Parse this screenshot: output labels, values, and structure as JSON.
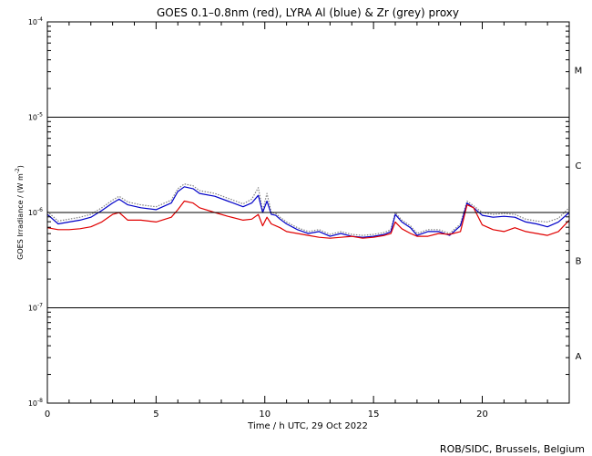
{
  "chart_data": {
    "type": "line",
    "title": "GOES 0.1–0.8nm (red), LYRA Al (blue) & Zr (grey) proxy",
    "xlabel": "Time / h UTC, 29 Oct 2022",
    "ylabel": "GOES Irradiance / (W m",
    "ylabel_sup": "-2",
    "ylabel_close": ")",
    "credit": "ROB/SIDC, Brussels, Belgium",
    "x_range": [
      0,
      24
    ],
    "y_log_range": [
      -8,
      -4
    ],
    "y_scale": "log",
    "x_ticks": [
      {
        "value": 0,
        "label": "0"
      },
      {
        "value": 5,
        "label": "5"
      },
      {
        "value": 10,
        "label": "10"
      },
      {
        "value": 15,
        "label": "15"
      },
      {
        "value": 20,
        "label": "20"
      }
    ],
    "y_ticks": [
      {
        "exp": -8,
        "base": "10",
        "sup": "-8"
      },
      {
        "exp": -7,
        "base": "10",
        "sup": "-7"
      },
      {
        "exp": -6,
        "base": "10",
        "sup": "-6"
      },
      {
        "exp": -5,
        "base": "10",
        "sup": "-5"
      },
      {
        "exp": -4,
        "base": "10",
        "sup": "-4"
      }
    ],
    "flare_class_lines": [
      -7,
      -6,
      -5
    ],
    "flare_classes": [
      {
        "label": "A",
        "exp": -7.5
      },
      {
        "label": "B",
        "exp": -6.5
      },
      {
        "label": "C",
        "exp": -5.5
      },
      {
        "label": "M",
        "exp": -4.5
      }
    ],
    "colors": {
      "goes": "#e00000",
      "lyra_al": "#0000c8",
      "lyra_zr": "#808080",
      "axes": "#000000"
    },
    "series": [
      {
        "color": "#e00000",
        "x": [
          0,
          0.5,
          1,
          1.5,
          2,
          2.5,
          3,
          3.3,
          3.7,
          4.3,
          5,
          5.7,
          6,
          6.3,
          6.7,
          7,
          7.7,
          8.3,
          9,
          9.4,
          9.7,
          9.9,
          10.1,
          10.3,
          10.5,
          10.7,
          11,
          11.5,
          12,
          12.5,
          13,
          13.5,
          14,
          14.5,
          15,
          15.5,
          15.8,
          16,
          16.3,
          16.7,
          17,
          17.5,
          18,
          18.5,
          19,
          19.3,
          19.6,
          20,
          20.5,
          21,
          21.5,
          22,
          22.5,
          23,
          23.5,
          24
        ],
        "log_y": [
          -6.16,
          -6.18,
          -6.18,
          -6.17,
          -6.15,
          -6.1,
          -6.02,
          -6.0,
          -6.08,
          -6.08,
          -6.1,
          -6.05,
          -5.97,
          -5.88,
          -5.9,
          -5.95,
          -6.0,
          -6.04,
          -6.08,
          -6.07,
          -6.02,
          -6.14,
          -6.05,
          -6.12,
          -6.14,
          -6.16,
          -6.2,
          -6.22,
          -6.24,
          -6.26,
          -6.27,
          -6.26,
          -6.25,
          -6.27,
          -6.26,
          -6.24,
          -6.22,
          -6.1,
          -6.17,
          -6.22,
          -6.25,
          -6.25,
          -6.22,
          -6.23,
          -6.2,
          -5.92,
          -5.95,
          -6.13,
          -6.18,
          -6.2,
          -6.16,
          -6.2,
          -6.22,
          -6.24,
          -6.2,
          -6.08
        ]
      },
      {
        "color": "#0000c8",
        "x": [
          0,
          0.5,
          1,
          1.5,
          2,
          2.5,
          3,
          3.3,
          3.7,
          4.3,
          5,
          5.7,
          6,
          6.3,
          6.7,
          7,
          7.7,
          8.3,
          9,
          9.4,
          9.7,
          9.9,
          10.1,
          10.3,
          10.5,
          10.7,
          11,
          11.5,
          12,
          12.5,
          13,
          13.5,
          14,
          14.5,
          15,
          15.5,
          15.8,
          16,
          16.3,
          16.7,
          17,
          17.5,
          18,
          18.5,
          19,
          19.3,
          19.6,
          20,
          20.5,
          21,
          21.5,
          22,
          22.5,
          23,
          23.5,
          24
        ],
        "log_y": [
          -6.02,
          -6.12,
          -6.1,
          -6.08,
          -6.05,
          -5.98,
          -5.9,
          -5.86,
          -5.92,
          -5.95,
          -5.97,
          -5.9,
          -5.78,
          -5.73,
          -5.75,
          -5.8,
          -5.83,
          -5.88,
          -5.94,
          -5.9,
          -5.82,
          -6.0,
          -5.88,
          -6.02,
          -6.03,
          -6.07,
          -6.12,
          -6.18,
          -6.22,
          -6.2,
          -6.25,
          -6.22,
          -6.25,
          -6.26,
          -6.25,
          -6.23,
          -6.2,
          -6.02,
          -6.1,
          -6.16,
          -6.24,
          -6.2,
          -6.2,
          -6.24,
          -6.14,
          -5.9,
          -5.95,
          -6.03,
          -6.05,
          -6.04,
          -6.05,
          -6.1,
          -6.12,
          -6.15,
          -6.1,
          -6.0
        ]
      },
      {
        "color": "#808080",
        "x": [
          0,
          0.5,
          1,
          1.5,
          2,
          2.5,
          3,
          3.3,
          3.7,
          4.3,
          5,
          5.7,
          6,
          6.3,
          6.7,
          7,
          7.7,
          8.3,
          9,
          9.4,
          9.7,
          9.9,
          10.1,
          10.3,
          10.5,
          10.7,
          11,
          11.5,
          12,
          12.5,
          13,
          13.5,
          14,
          14.5,
          15,
          15.5,
          15.8,
          16,
          16.3,
          16.7,
          17,
          17.5,
          18,
          18.5,
          19,
          19.3,
          19.6,
          20,
          20.5,
          21,
          21.5,
          22,
          22.5,
          23,
          23.5,
          24
        ],
        "log_y": [
          -5.99,
          -6.09,
          -6.07,
          -6.05,
          -6.02,
          -5.95,
          -5.87,
          -5.83,
          -5.89,
          -5.92,
          -5.94,
          -5.87,
          -5.75,
          -5.7,
          -5.72,
          -5.77,
          -5.8,
          -5.85,
          -5.91,
          -5.86,
          -5.74,
          -5.98,
          -5.8,
          -6.0,
          -6.01,
          -6.05,
          -6.1,
          -6.16,
          -6.2,
          -6.18,
          -6.23,
          -6.2,
          -6.23,
          -6.24,
          -6.23,
          -6.21,
          -6.18,
          -6.0,
          -6.08,
          -6.14,
          -6.22,
          -6.18,
          -6.18,
          -6.22,
          -6.12,
          -5.88,
          -5.93,
          -6.0,
          -6.02,
          -6.01,
          -6.02,
          -6.07,
          -6.09,
          -6.1,
          -6.06,
          -5.95
        ]
      }
    ]
  }
}
